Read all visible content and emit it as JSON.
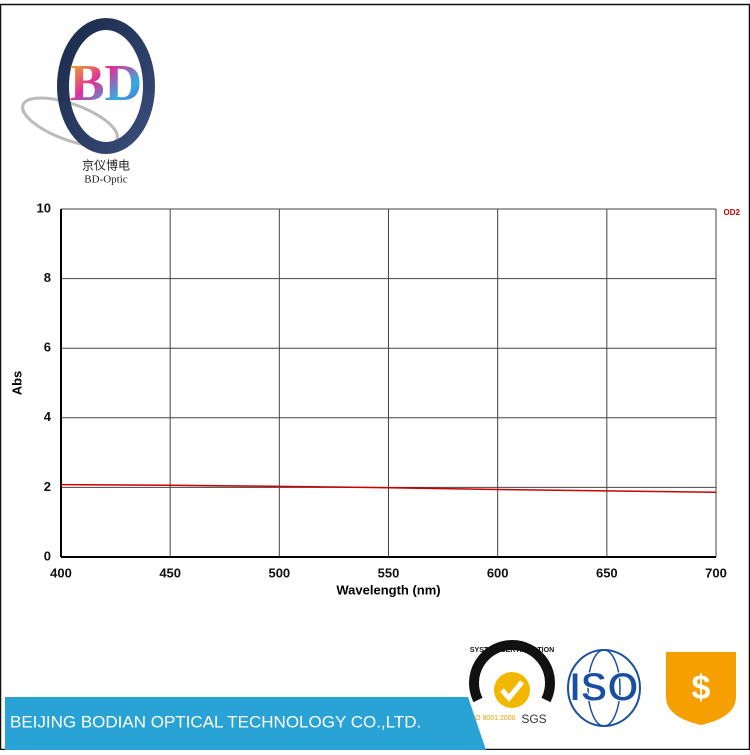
{
  "logo": {
    "mark": "BD",
    "name_cn": "京仪博电",
    "name_en": "BD-Optic"
  },
  "chart_data": {
    "type": "line",
    "x": [
      400,
      450,
      500,
      550,
      600,
      650,
      700
    ],
    "series": [
      {
        "name": "OD2",
        "color": "#cc0000",
        "values": [
          2.08,
          2.06,
          2.03,
          1.99,
          1.94,
          1.9,
          1.86
        ]
      }
    ],
    "xlim": [
      400,
      700
    ],
    "ylim": [
      0,
      10
    ],
    "xticks": [
      400,
      450,
      500,
      550,
      600,
      650,
      700
    ],
    "yticks": [
      0,
      2,
      4,
      6,
      8,
      10
    ],
    "x_label": "Wavelength (nm)",
    "y_label": "Abs",
    "grid": true,
    "legend": "top-right"
  },
  "badges": {
    "sgs_ring": "SYSTEM CERTIFICATION",
    "sgs_standard": "ISO 9001:2000",
    "sgs": "SGS",
    "iso": "ISO",
    "shield": "$"
  },
  "footer": "BEIJING BODIAN OPTICAL TECHNOLOGY CO.,LTD."
}
